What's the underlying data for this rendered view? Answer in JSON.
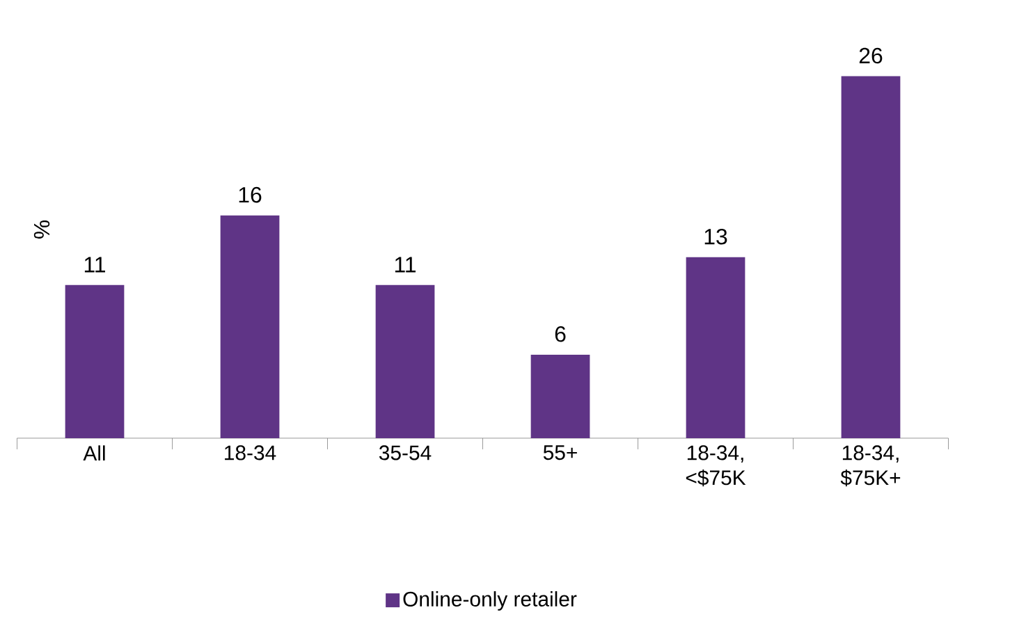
{
  "chart_data": {
    "type": "bar",
    "ylabel": "%",
    "categories": [
      "All",
      "18-34",
      "35-54",
      "55+",
      "18-34, <$75K",
      "18-34, $75K+"
    ],
    "series": [
      {
        "name": "Online-only retailer",
        "color": "#5f3486",
        "values": [
          11,
          16,
          11,
          6,
          13,
          26
        ]
      }
    ],
    "data_labels": true,
    "legend": "bottom",
    "tick_labels": "x"
  }
}
